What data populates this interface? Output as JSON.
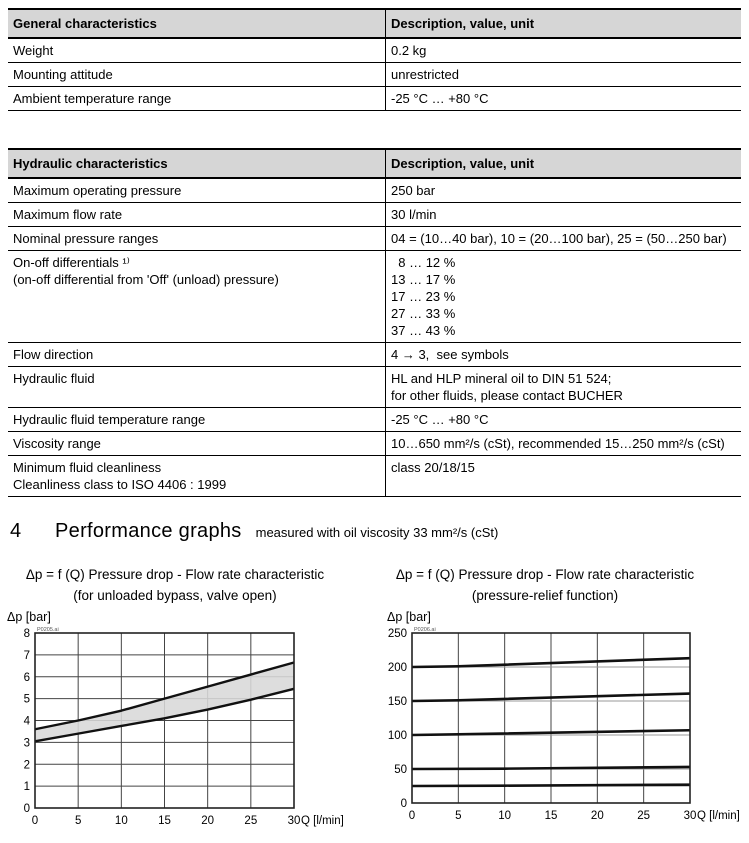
{
  "page": {
    "background": "#ffffff",
    "text_color": "#000000",
    "table_header_bg": "#d6d6d6",
    "band_fill": "#d8d8d8",
    "grid_color": "#444444",
    "curve_color": "#111111"
  },
  "tables": [
    {
      "header": [
        "General characteristics",
        "Description, value, unit"
      ],
      "rows": [
        {
          "label": [
            "Weight"
          ],
          "value": [
            "0.2 kg"
          ]
        },
        {
          "label": [
            "Mounting attitude"
          ],
          "value": [
            "unrestricted"
          ]
        },
        {
          "label": [
            "Ambient temperature range"
          ],
          "value": [
            "-25 °C … +80 °C"
          ]
        }
      ]
    },
    {
      "header": [
        "Hydraulic characteristics",
        "Description, value, unit"
      ],
      "rows": [
        {
          "label": [
            "Maximum operating pressure"
          ],
          "value": [
            "250 bar"
          ]
        },
        {
          "label": [
            "Maximum flow rate"
          ],
          "value": [
            "30 l/min"
          ]
        },
        {
          "label": [
            "Nominal pressure ranges"
          ],
          "value": [
            "04 = (10…40 bar), 10 = (20…100 bar), 25 = (50…250 bar)"
          ]
        },
        {
          "label": [
            "On-off differentials ¹⁾",
            "(on-off differential from 'Off' (unload) pressure)"
          ],
          "value": [
            "  8 … 12 %",
            "13 … 17 %",
            "17 … 23 %",
            "27 … 33 %",
            "37 … 43 %"
          ]
        },
        {
          "label": [
            "Flow direction"
          ],
          "value": [
            "4 → 3,  see symbols"
          ]
        },
        {
          "label": [
            "Hydraulic fluid"
          ],
          "value": [
            "HL and HLP mineral oil to DIN 51 524;",
            "for other fluids, please contact BUCHER"
          ]
        },
        {
          "label": [
            "Hydraulic fluid temperature range"
          ],
          "value": [
            "-25 °C … +80 °C"
          ]
        },
        {
          "label": [
            "Viscosity range"
          ],
          "value": [
            "10…650 mm²/s (cSt), recommended 15…250 mm²/s (cSt)"
          ]
        },
        {
          "label": [
            "Minimum fluid cleanliness",
            "Cleanliness class to ISO 4406 : 1999"
          ],
          "value": [
            "class 20/18/15"
          ]
        }
      ]
    }
  ],
  "section_heading": {
    "number": "4",
    "title": "Performance graphs",
    "note": "measured with oil viscosity 33 mm²/s (cSt)"
  },
  "chart_data": [
    {
      "type": "area",
      "title": "Δp = f (Q) Pressure drop - Flow rate characteristic",
      "subtitle": "(for unloaded bypass, valve open)",
      "ylabel": "Δp [bar]",
      "xlabel": "Q [l/min]",
      "watermark": "P0205.ai",
      "xlim": [
        0,
        30
      ],
      "ylim": [
        0,
        8
      ],
      "xticks": [
        0,
        5,
        10,
        15,
        20,
        25,
        30
      ],
      "yticks": [
        0,
        1,
        2,
        3,
        4,
        5,
        6,
        7,
        8
      ],
      "grid": true,
      "legend": "none",
      "band": {
        "x": [
          0,
          5,
          10,
          15,
          20,
          25,
          30
        ],
        "lower": [
          3.05,
          3.4,
          3.75,
          4.1,
          4.5,
          4.95,
          5.45
        ],
        "upper": [
          3.6,
          4.0,
          4.45,
          5.0,
          5.55,
          6.1,
          6.65
        ]
      }
    },
    {
      "type": "line",
      "title": "Δp = f (Q) Pressure drop - Flow rate characteristic",
      "subtitle": "(pressure-relief function)",
      "ylabel": "Δp [bar]",
      "xlabel": "Q [l/min]",
      "watermark": "P0206.ai",
      "xlim": [
        0,
        30
      ],
      "ylim": [
        0,
        250
      ],
      "xticks": [
        0,
        5,
        10,
        15,
        20,
        25,
        30
      ],
      "yticks": [
        0,
        50,
        100,
        150,
        200,
        250
      ],
      "grid": true,
      "legend": "none",
      "series": [
        {
          "x": [
            0,
            5,
            30
          ],
          "y": [
            200,
            201,
            213
          ]
        },
        {
          "x": [
            0,
            5,
            30
          ],
          "y": [
            150,
            151,
            161
          ]
        },
        {
          "x": [
            0,
            5,
            30
          ],
          "y": [
            100,
            101,
            107
          ]
        },
        {
          "x": [
            0,
            10,
            30
          ],
          "y": [
            50,
            50.5,
            53
          ]
        },
        {
          "x": [
            0,
            10,
            30
          ],
          "y": [
            25,
            25.5,
            27
          ]
        }
      ]
    }
  ]
}
